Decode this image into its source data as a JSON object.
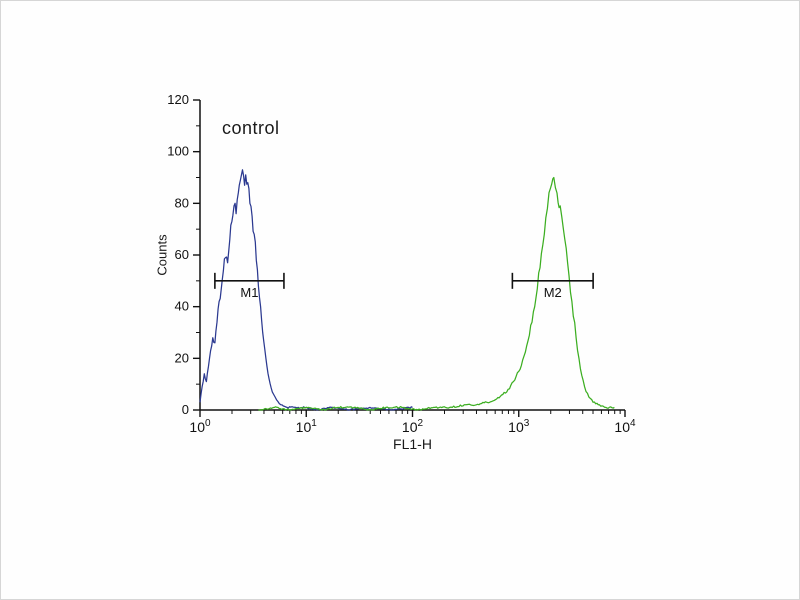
{
  "chart_data": {
    "type": "line",
    "title": "",
    "annotation": "control",
    "xlabel": "FL1-H",
    "ylabel": "Counts",
    "x_scale": "log10",
    "xlim_log10": [
      0,
      4
    ],
    "ylim": [
      0,
      120
    ],
    "y_ticks": [
      0,
      20,
      40,
      60,
      80,
      100,
      120
    ],
    "x_ticks": [
      {
        "base": "10",
        "exp": "0"
      },
      {
        "base": "10",
        "exp": "1"
      },
      {
        "base": "10",
        "exp": "2"
      },
      {
        "base": "10",
        "exp": "3"
      },
      {
        "base": "10",
        "exp": "4"
      }
    ],
    "grid": false,
    "legend": "none",
    "axis_color": "#111111",
    "series": [
      {
        "name": "blue-curve",
        "color": "#2b3990",
        "points_logx_y": [
          [
            0.0,
            3
          ],
          [
            0.02,
            9
          ],
          [
            0.04,
            14
          ],
          [
            0.06,
            11
          ],
          [
            0.08,
            17
          ],
          [
            0.1,
            23
          ],
          [
            0.12,
            28
          ],
          [
            0.14,
            26
          ],
          [
            0.16,
            34
          ],
          [
            0.18,
            42
          ],
          [
            0.2,
            47
          ],
          [
            0.22,
            54
          ],
          [
            0.24,
            59
          ],
          [
            0.26,
            57
          ],
          [
            0.28,
            66
          ],
          [
            0.3,
            73
          ],
          [
            0.32,
            79
          ],
          [
            0.34,
            76
          ],
          [
            0.36,
            84
          ],
          [
            0.38,
            89
          ],
          [
            0.4,
            93
          ],
          [
            0.42,
            87
          ],
          [
            0.43,
            91
          ],
          [
            0.45,
            88
          ],
          [
            0.47,
            80
          ],
          [
            0.49,
            75
          ],
          [
            0.51,
            68
          ],
          [
            0.53,
            58
          ],
          [
            0.55,
            48
          ],
          [
            0.57,
            40
          ],
          [
            0.59,
            30
          ],
          [
            0.62,
            20
          ],
          [
            0.65,
            12
          ],
          [
            0.68,
            7
          ],
          [
            0.72,
            4
          ],
          [
            0.76,
            2
          ],
          [
            0.82,
            1
          ],
          [
            0.9,
            1
          ],
          [
            1.0,
            1
          ],
          [
            1.1,
            0
          ],
          [
            1.25,
            1
          ],
          [
            1.4,
            0
          ],
          [
            1.6,
            1
          ],
          [
            1.8,
            0
          ],
          [
            2.0,
            1
          ]
        ]
      },
      {
        "name": "green-curve",
        "color": "#3cae21",
        "points_logx_y": [
          [
            0.55,
            0
          ],
          [
            0.7,
            1
          ],
          [
            0.85,
            0
          ],
          [
            1.0,
            1
          ],
          [
            1.15,
            0
          ],
          [
            1.3,
            1
          ],
          [
            1.45,
            1
          ],
          [
            1.6,
            0
          ],
          [
            1.75,
            1
          ],
          [
            1.9,
            1
          ],
          [
            2.05,
            0
          ],
          [
            2.2,
            1
          ],
          [
            2.35,
            1
          ],
          [
            2.5,
            2
          ],
          [
            2.6,
            2
          ],
          [
            2.7,
            3
          ],
          [
            2.78,
            4
          ],
          [
            2.85,
            6
          ],
          [
            2.9,
            8
          ],
          [
            2.95,
            11
          ],
          [
            3.0,
            15
          ],
          [
            3.05,
            21
          ],
          [
            3.1,
            29
          ],
          [
            3.15,
            40
          ],
          [
            3.2,
            55
          ],
          [
            3.24,
            68
          ],
          [
            3.27,
            78
          ],
          [
            3.3,
            86
          ],
          [
            3.33,
            90
          ],
          [
            3.36,
            84
          ],
          [
            3.39,
            79
          ],
          [
            3.42,
            70
          ],
          [
            3.46,
            57
          ],
          [
            3.5,
            42
          ],
          [
            3.54,
            28
          ],
          [
            3.58,
            16
          ],
          [
            3.62,
            9
          ],
          [
            3.66,
            5
          ],
          [
            3.7,
            3
          ],
          [
            3.76,
            2
          ],
          [
            3.82,
            1
          ],
          [
            3.9,
            1
          ]
        ]
      }
    ],
    "markers": [
      {
        "label": "M1",
        "y": 50,
        "logx_start": 0.14,
        "logx_end": 0.79
      },
      {
        "label": "M2",
        "y": 50,
        "logx_start": 2.94,
        "logx_end": 3.7
      }
    ]
  }
}
